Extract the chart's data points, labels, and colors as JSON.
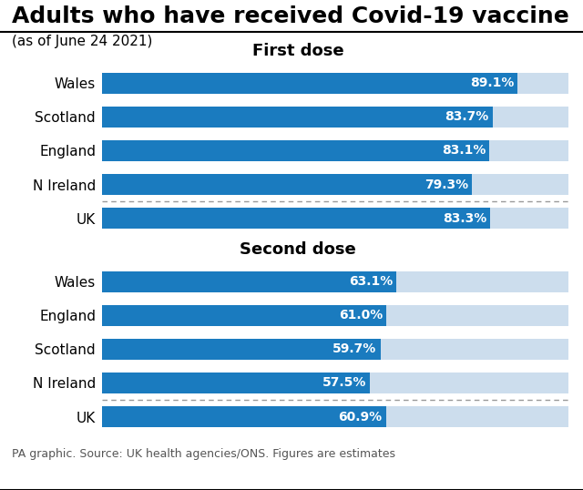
{
  "title": "Adults who have received Covid-19 vaccine",
  "subtitle": "(as of June 24 2021)",
  "source": "PA graphic. Source: UK health agencies/ONS. Figures are estimates",
  "first_dose": {
    "label": "First dose",
    "categories": [
      "Wales",
      "Scotland",
      "England",
      "N Ireland",
      "UK"
    ],
    "values": [
      89.1,
      83.7,
      83.1,
      79.3,
      83.3
    ],
    "value_labels": [
      "89.1%",
      "83.7%",
      "83.1%",
      "79.3%",
      "83.3%"
    ],
    "max_val": 100
  },
  "second_dose": {
    "label": "Second dose",
    "categories": [
      "Wales",
      "England",
      "Scotland",
      "N Ireland",
      "UK"
    ],
    "values": [
      63.1,
      61.0,
      59.7,
      57.5,
      60.9
    ],
    "value_labels": [
      "63.1%",
      "61.0%",
      "59.7%",
      "57.5%",
      "60.9%"
    ],
    "max_val": 100
  },
  "bar_color": "#1a7bbf",
  "bg_bar_color": "#ccdded",
  "uk_separator_color": "#999999",
  "background_color": "#ffffff",
  "title_line_color": "#000000",
  "bar_height": 0.62,
  "label_fontsize": 11,
  "value_fontsize": 10,
  "section_title_fontsize": 13,
  "title_fontsize": 18,
  "subtitle_fontsize": 11,
  "footer_fontsize": 9
}
